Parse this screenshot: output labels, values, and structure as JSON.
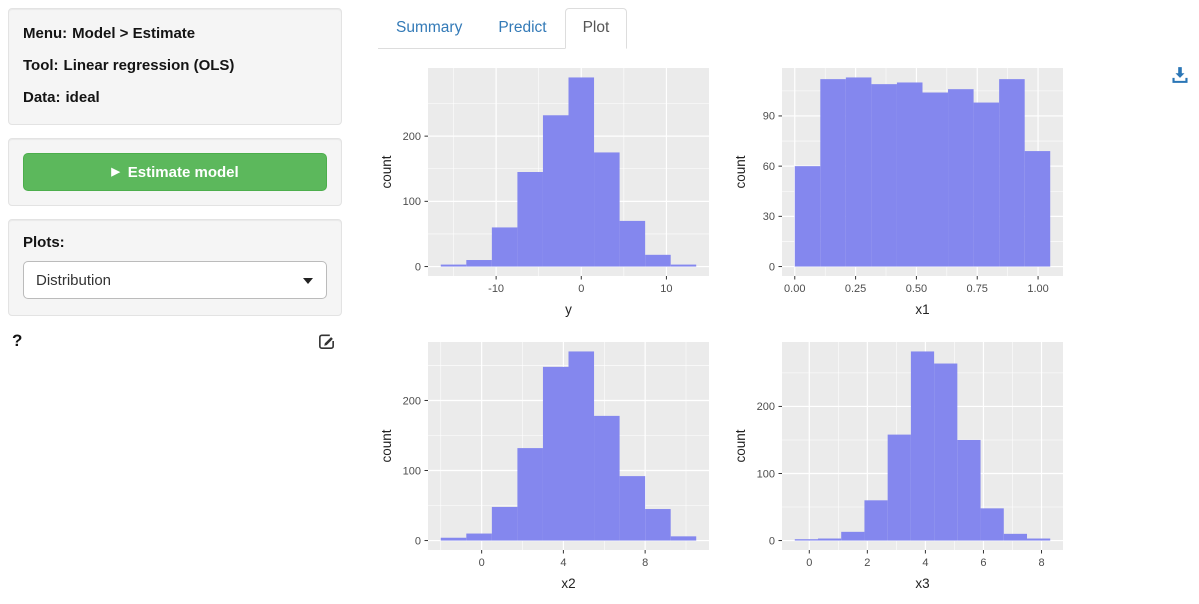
{
  "sidebar": {
    "info_lines": [
      {
        "label": "Menu:",
        "value": "Model > Estimate"
      },
      {
        "label": "Tool:",
        "value": "Linear regression (OLS)"
      },
      {
        "label": "Data:",
        "value": "ideal"
      }
    ],
    "estimate_button_label": "Estimate model",
    "plots_label": "Plots:",
    "plots_selected_value": "Distribution",
    "help_icon_label": "?"
  },
  "tabs": [
    {
      "label": "Summary",
      "active": false
    },
    {
      "label": "Predict",
      "active": false
    },
    {
      "label": "Plot",
      "active": true
    }
  ],
  "colors": {
    "link_blue": "#337ab7",
    "button_green": "#5cb85c",
    "hist_fill": "#8487ee",
    "panel_bg": "#ebebeb",
    "tick_text": "#4d4d4d",
    "download_blue": "#2a76b6"
  },
  "chart_data": [
    {
      "type": "bar",
      "subtype": "histogram",
      "title": "",
      "xlabel": "y",
      "ylabel": "count",
      "bin_start": -16.5,
      "bin_width": 3,
      "counts": [
        3,
        10,
        60,
        145,
        232,
        290,
        175,
        70,
        18,
        3
      ],
      "xtick_values": [
        -10,
        0,
        10
      ],
      "xtick_labels": [
        "-10",
        "0",
        "10"
      ],
      "ytick_values": [
        0,
        100,
        200
      ],
      "ytick_labels": [
        "0",
        "100",
        "200"
      ],
      "grid": true,
      "legend": false
    },
    {
      "type": "bar",
      "subtype": "histogram",
      "title": "",
      "xlabel": "x1",
      "ylabel": "count",
      "bin_start": 0,
      "bin_width": 0.105,
      "counts": [
        60,
        112,
        113,
        109,
        110,
        104,
        106,
        98,
        112,
        69
      ],
      "xtick_values": [
        0,
        0.25,
        0.5,
        0.75,
        1.0
      ],
      "xtick_labels": [
        "0.00",
        "0.25",
        "0.50",
        "0.75",
        "1.00"
      ],
      "ytick_values": [
        0,
        30,
        60,
        90
      ],
      "ytick_labels": [
        "0",
        "30",
        "60",
        "90"
      ],
      "grid": true,
      "legend": false
    },
    {
      "type": "bar",
      "subtype": "histogram",
      "title": "",
      "xlabel": "x2",
      "ylabel": "count",
      "bin_start": -2,
      "bin_width": 1.25,
      "counts": [
        4,
        10,
        48,
        132,
        248,
        270,
        178,
        92,
        45,
        6
      ],
      "xtick_values": [
        0,
        4,
        8
      ],
      "xtick_labels": [
        "0",
        "4",
        "8"
      ],
      "ytick_values": [
        0,
        100,
        200
      ],
      "ytick_labels": [
        "0",
        "100",
        "200"
      ],
      "grid": true,
      "legend": false
    },
    {
      "type": "bar",
      "subtype": "histogram",
      "title": "",
      "xlabel": "x3",
      "ylabel": "count",
      "bin_start": -0.5,
      "bin_width": 0.8,
      "counts": [
        2,
        3,
        13,
        60,
        158,
        282,
        264,
        150,
        48,
        10,
        3
      ],
      "xtick_values": [
        0,
        2,
        4,
        6,
        8
      ],
      "xtick_labels": [
        "0",
        "2",
        "4",
        "6",
        "8"
      ],
      "ytick_values": [
        0,
        100,
        200
      ],
      "ytick_labels": [
        "0",
        "100",
        "200"
      ],
      "grid": true,
      "legend": false
    }
  ]
}
